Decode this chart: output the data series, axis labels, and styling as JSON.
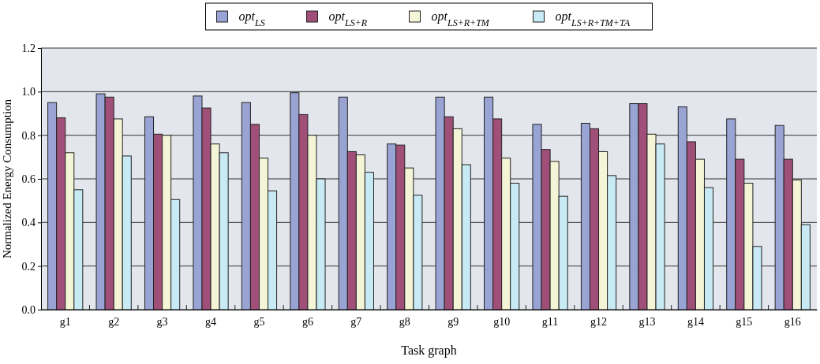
{
  "chart_data": {
    "type": "bar",
    "xlabel": "Task graph",
    "ylabel": "Normalized Energy Consumption",
    "categories": [
      "g1",
      "g2",
      "g3",
      "g4",
      "g5",
      "g6",
      "g7",
      "g8",
      "g9",
      "g10",
      "g11",
      "g12",
      "g13",
      "g14",
      "g15",
      "g16"
    ],
    "series": [
      {
        "name": "opt$_{LS}$",
        "color": "#99a4d4",
        "values": [
          0.95,
          0.99,
          0.885,
          0.98,
          0.95,
          0.995,
          0.975,
          0.76,
          0.975,
          0.975,
          0.85,
          0.855,
          0.945,
          0.93,
          0.875,
          0.845
        ]
      },
      {
        "name": "opt$_{LS+R}$",
        "color": "#a05078",
        "values": [
          0.88,
          0.975,
          0.805,
          0.925,
          0.85,
          0.895,
          0.725,
          0.755,
          0.885,
          0.875,
          0.735,
          0.83,
          0.945,
          0.77,
          0.69,
          0.69
        ]
      },
      {
        "name": "opt$_{LS+R+TM}$",
        "color": "#f4f4d6",
        "values": [
          0.72,
          0.875,
          0.8,
          0.76,
          0.695,
          0.8,
          0.71,
          0.65,
          0.83,
          0.695,
          0.68,
          0.725,
          0.805,
          0.69,
          0.58,
          0.595
        ]
      },
      {
        "name": "opt$_{LS+R+TM+TA}$",
        "color": "#c8eaf4",
        "values": [
          0.55,
          0.705,
          0.505,
          0.72,
          0.545,
          0.6,
          0.63,
          0.525,
          0.665,
          0.58,
          0.52,
          0.615,
          0.76,
          0.56,
          0.29,
          0.39
        ]
      }
    ],
    "ylim": [
      0,
      1.2
    ],
    "yticks": [
      {
        "value": 0,
        "label": "0.0"
      },
      {
        "value": 0.2,
        "label": "0.2"
      },
      {
        "value": 0.4,
        "label": "0.4"
      },
      {
        "value": 0.6,
        "label": "0.6"
      },
      {
        "value": 0.8,
        "label": "0.8"
      },
      {
        "value": 1,
        "label": "1.0"
      },
      {
        "value": 1.2,
        "label": "1.2"
      }
    ],
    "grid": "y",
    "legend": "top"
  }
}
